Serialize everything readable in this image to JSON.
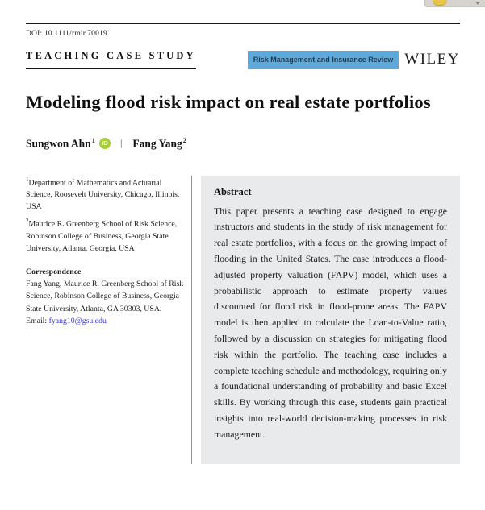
{
  "chrome": {
    "toolbar_icon": "bookmark-icon",
    "caret_icon": "chevron-down-icon"
  },
  "header": {
    "doi": "DOI: 10.1111/rmir.70019",
    "section_label": "TEACHING CASE STUDY",
    "journal_badge": "Risk Management and Insurance Review",
    "publisher": "WILEY"
  },
  "article": {
    "title": "Modeling flood risk impact on real estate portfolios",
    "author_separator": "|",
    "authors": [
      {
        "name": "Sungwon Ahn",
        "sup": "1",
        "orcid_label": "iD"
      },
      {
        "name": "Fang Yang",
        "sup": "2"
      }
    ]
  },
  "left_column": {
    "affiliations": [
      {
        "sup": "1",
        "text": "Department of Mathematics and Actuarial Science, Roosevelt University, Chicago, Illinois, USA"
      },
      {
        "sup": "2",
        "text": "Maurice R. Greenberg School of Risk Science, Robinson College of Business, Georgia State University, Atlanta, Georgia, USA"
      }
    ],
    "correspondence": {
      "heading": "Correspondence",
      "text": "Fang Yang, Maurice R. Greenberg School of Risk Science, Robinson College of Business, Georgia State University, Atlanta, GA 30303, USA.",
      "email_label": "Email:",
      "email": "fyang10@gsu.edu"
    }
  },
  "abstract": {
    "heading": "Abstract",
    "body": "This paper presents a teaching case designed to engage instructors and students in the study of risk management for real estate portfolios, with a focus on the growing impact of flooding in the United States. The case introduces a flood-adjusted property valuation (FAPV) model, which uses a probabilistic approach to estimate property values discounted for flood risk in flood-prone areas. The FAPV model is then applied to calculate the Loan-to-Value ratio, followed by a discussion on strategies for mitigating flood risk within the portfolio. The teaching case includes a complete teaching schedule and methodology, requiring only a foundational understanding of probability and basic Excel skills. By working through this case, students gain practical insights into real-world decision-making processes in risk management."
  },
  "colors": {
    "journal_badge_bg": "#5FA8DA",
    "journal_badge_text": "#1D3C52",
    "orcid_green": "#A6CE39",
    "email_link": "#3233CE",
    "abstract_bg": "#E9EAEB"
  }
}
